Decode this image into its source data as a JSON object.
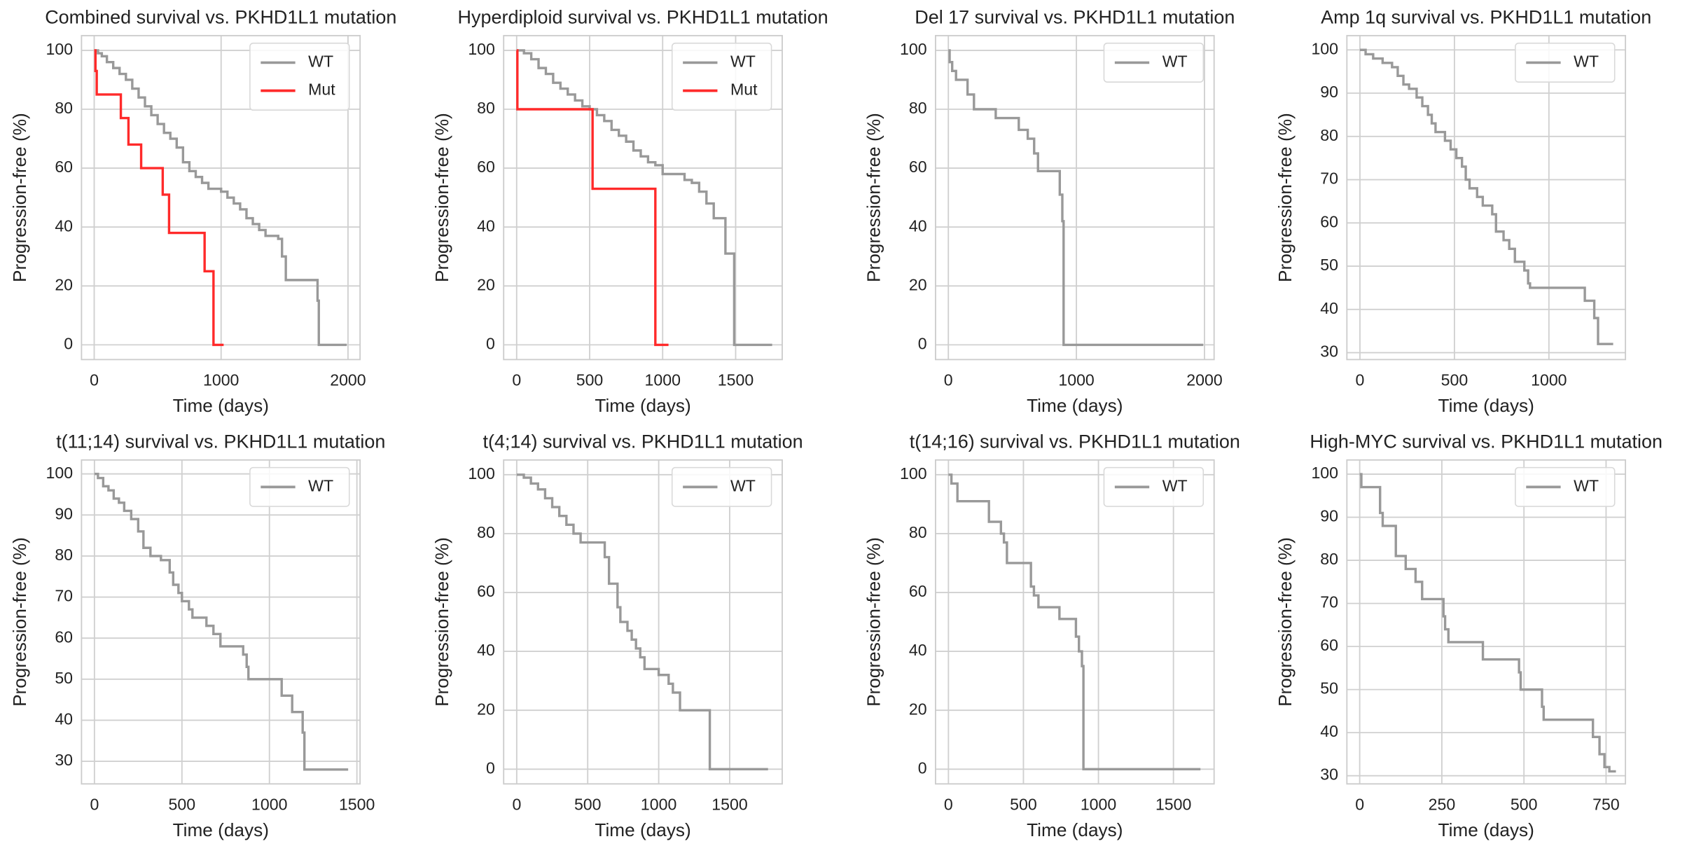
{
  "chart_data": [
    {
      "type": "line",
      "drawstyle": "steps-post",
      "title": "Combined survival vs. PKHD1L1 mutation",
      "xlabel": "Time (days)",
      "ylabel": "Progression-free (%)",
      "grid": true,
      "legend": "upper right",
      "xlim": [
        -100,
        2095
      ],
      "ylim": [
        -5,
        105
      ],
      "xticks": [
        0,
        1000,
        2000
      ],
      "yticks": [
        0,
        20,
        40,
        60,
        80,
        100
      ],
      "series": [
        {
          "name": "WT",
          "color": "#999999",
          "x": [
            0,
            30,
            60,
            100,
            150,
            200,
            250,
            300,
            350,
            400,
            450,
            500,
            550,
            600,
            650,
            700,
            750,
            800,
            850,
            900,
            1000,
            1050,
            1100,
            1150,
            1200,
            1250,
            1300,
            1350,
            1450,
            1480,
            1510,
            1750,
            1760,
            1770,
            1990
          ],
          "values": [
            100,
            99,
            98,
            96,
            94,
            92,
            90,
            87,
            84,
            81,
            78,
            75,
            72,
            70,
            67,
            62,
            59,
            57,
            55,
            53,
            52,
            50,
            48,
            46,
            43,
            41,
            39,
            37,
            36,
            30,
            22,
            22,
            15,
            0,
            0
          ]
        },
        {
          "name": "Mut",
          "color": "#ff2a2a",
          "x": [
            0,
            10,
            20,
            200,
            210,
            260,
            270,
            360,
            370,
            530,
            540,
            580,
            590,
            860,
            870,
            930,
            940,
            1020
          ],
          "values": [
            100,
            93,
            85,
            85,
            77,
            77,
            68,
            68,
            60,
            60,
            51,
            51,
            38,
            38,
            25,
            25,
            0,
            0
          ]
        }
      ]
    },
    {
      "type": "line",
      "drawstyle": "steps-post",
      "title": "Hyperdiploid survival vs. PKHD1L1 mutation",
      "xlabel": "Time (days)",
      "ylabel": "Progression-free (%)",
      "grid": true,
      "legend": "upper right",
      "xlim": [
        -89,
        1819
      ],
      "ylim": [
        -5,
        105
      ],
      "xticks": [
        0,
        500,
        1000,
        1500
      ],
      "yticks": [
        0,
        20,
        40,
        60,
        80,
        100
      ],
      "series": [
        {
          "name": "WT",
          "color": "#999999",
          "x": [
            0,
            50,
            100,
            150,
            200,
            250,
            300,
            350,
            400,
            450,
            500,
            550,
            600,
            650,
            700,
            750,
            800,
            850,
            900,
            950,
            1000,
            1100,
            1150,
            1200,
            1250,
            1300,
            1350,
            1400,
            1430,
            1480,
            1490,
            1750
          ],
          "values": [
            100,
            99,
            97,
            94,
            92,
            89,
            87,
            85,
            83,
            81,
            80,
            78,
            76,
            73,
            71,
            69,
            66,
            64,
            62,
            61,
            58,
            58,
            56,
            55,
            52,
            48,
            43,
            43,
            31,
            31,
            0,
            0
          ]
        },
        {
          "name": "Mut",
          "color": "#ff2a2a",
          "x": [
            0,
            5,
            510,
            520,
            940,
            950,
            1040
          ],
          "values": [
            100,
            80,
            80,
            53,
            53,
            0,
            0
          ]
        }
      ]
    },
    {
      "type": "line",
      "drawstyle": "steps-post",
      "title": "Del 17 survival vs. PKHD1L1 mutation",
      "xlabel": "Time (days)",
      "ylabel": "Progression-free (%)",
      "grid": true,
      "legend": "upper right",
      "xlim": [
        -100,
        2075
      ],
      "ylim": [
        -5,
        105
      ],
      "xticks": [
        0,
        1000,
        2000
      ],
      "yticks": [
        0,
        20,
        40,
        60,
        80,
        100
      ],
      "series": [
        {
          "name": "WT",
          "color": "#999999",
          "x": [
            0,
            10,
            30,
            60,
            150,
            200,
            370,
            550,
            620,
            670,
            700,
            850,
            870,
            890,
            900,
            1990
          ],
          "values": [
            100,
            96,
            93,
            90,
            85,
            80,
            77,
            73,
            70,
            65,
            59,
            59,
            51,
            42,
            0,
            0
          ]
        }
      ]
    },
    {
      "type": "line",
      "drawstyle": "steps-post",
      "title": "Amp 1q survival vs. PKHD1L1 mutation",
      "xlabel": "Time (days)",
      "ylabel": "Progression-free (%)",
      "grid": true,
      "legend": "upper right",
      "xlim": [
        -69,
        1405
      ],
      "ylim": [
        28.4,
        103.3
      ],
      "xticks": [
        0,
        500,
        1000
      ],
      "yticks": [
        30,
        40,
        50,
        60,
        70,
        80,
        90,
        100
      ],
      "series": [
        {
          "name": "WT",
          "color": "#999999",
          "x": [
            0,
            30,
            70,
            120,
            170,
            200,
            230,
            260,
            300,
            330,
            360,
            380,
            400,
            450,
            480,
            510,
            540,
            560,
            580,
            620,
            650,
            700,
            720,
            760,
            790,
            820,
            870,
            890,
            900,
            1180,
            1190,
            1240,
            1260,
            1340
          ],
          "values": [
            100,
            99,
            98,
            97,
            96,
            94,
            92,
            91,
            89,
            87,
            85,
            83,
            81,
            79,
            77,
            75,
            73,
            70,
            68,
            66,
            64,
            62,
            58,
            56,
            54,
            51,
            49,
            46,
            45,
            45,
            42,
            38,
            32,
            32
          ]
        }
      ]
    },
    {
      "type": "line",
      "drawstyle": "steps-post",
      "title": "t(11;14) survival vs. PKHD1L1 mutation",
      "xlabel": "Time (days)",
      "ylabel": "Progression-free (%)",
      "grid": true,
      "legend": "upper right",
      "xlim": [
        -74,
        1518
      ],
      "ylim": [
        24.5,
        103.4
      ],
      "xticks": [
        0,
        500,
        1000,
        1500
      ],
      "yticks": [
        30,
        40,
        50,
        60,
        70,
        80,
        90,
        100
      ],
      "series": [
        {
          "name": "WT",
          "color": "#999999",
          "x": [
            0,
            20,
            50,
            80,
            110,
            140,
            170,
            210,
            250,
            280,
            320,
            380,
            430,
            450,
            480,
            500,
            540,
            560,
            640,
            680,
            720,
            850,
            870,
            880,
            1060,
            1070,
            1130,
            1190,
            1200,
            1450
          ],
          "values": [
            100,
            99,
            97,
            96,
            94,
            93,
            91,
            89,
            86,
            82,
            80,
            79,
            76,
            73,
            71,
            69,
            67,
            65,
            63,
            61,
            58,
            56,
            53,
            50,
            50,
            46,
            42,
            37,
            28,
            28
          ]
        }
      ]
    },
    {
      "type": "line",
      "drawstyle": "steps-post",
      "title": "t(4;14) survival vs. PKHD1L1 mutation",
      "xlabel": "Time (days)",
      "ylabel": "Progression-free (%)",
      "grid": true,
      "legend": "upper right",
      "xlim": [
        -92,
        1870
      ],
      "ylim": [
        -5,
        105
      ],
      "xticks": [
        0,
        500,
        1000,
        1500
      ],
      "yticks": [
        0,
        20,
        40,
        60,
        80,
        100
      ],
      "series": [
        {
          "name": "WT",
          "color": "#999999",
          "x": [
            0,
            50,
            100,
            150,
            200,
            250,
            300,
            350,
            400,
            450,
            600,
            620,
            650,
            700,
            710,
            730,
            780,
            810,
            840,
            870,
            900,
            960,
            1000,
            1070,
            1100,
            1150,
            1350,
            1360,
            1770
          ],
          "values": [
            100,
            99,
            97,
            95,
            92,
            89,
            86,
            83,
            80,
            77,
            77,
            72,
            63,
            63,
            55,
            50,
            47,
            44,
            41,
            38,
            34,
            34,
            32,
            29,
            26,
            20,
            20,
            0,
            0
          ]
        }
      ]
    },
    {
      "type": "line",
      "drawstyle": "steps-post",
      "title": "t(14;16) survival vs. PKHD1L1 mutation",
      "xlabel": "Time (days)",
      "ylabel": "Progression-free (%)",
      "grid": true,
      "legend": "upper right",
      "xlim": [
        -86,
        1771
      ],
      "ylim": [
        -5,
        105
      ],
      "xticks": [
        0,
        500,
        1000,
        1500
      ],
      "yticks": [
        0,
        20,
        40,
        60,
        80,
        100
      ],
      "series": [
        {
          "name": "WT",
          "color": "#999999",
          "x": [
            0,
            20,
            60,
            250,
            270,
            330,
            350,
            370,
            390,
            530,
            550,
            570,
            600,
            720,
            740,
            830,
            850,
            870,
            890,
            900,
            1680
          ],
          "values": [
            100,
            97,
            91,
            91,
            84,
            84,
            80,
            77,
            70,
            70,
            62,
            59,
            55,
            55,
            51,
            51,
            45,
            40,
            35,
            0,
            0
          ]
        }
      ]
    },
    {
      "type": "line",
      "drawstyle": "steps-post",
      "title": "High-MYC survival vs. PKHD1L1 mutation",
      "xlabel": "Time (days)",
      "ylabel": "Progression-free (%)",
      "grid": true,
      "legend": "upper right",
      "xlim": [
        -39,
        809
      ],
      "ylim": [
        28.1,
        103.3
      ],
      "xticks": [
        0,
        250,
        500,
        750
      ],
      "yticks": [
        30,
        40,
        50,
        60,
        70,
        80,
        90,
        100
      ],
      "series": [
        {
          "name": "WT",
          "color": "#999999",
          "x": [
            0,
            5,
            60,
            62,
            70,
            100,
            110,
            130,
            140,
            170,
            190,
            250,
            255,
            260,
            270,
            370,
            375,
            480,
            485,
            490,
            550,
            555,
            560,
            700,
            710,
            730,
            745,
            760,
            780
          ],
          "values": [
            100,
            97,
            97,
            91,
            88,
            88,
            81,
            81,
            78,
            75,
            71,
            71,
            67,
            64,
            61,
            61,
            57,
            57,
            54,
            50,
            50,
            46,
            43,
            43,
            39,
            35,
            32,
            31,
            31
          ]
        }
      ]
    }
  ]
}
